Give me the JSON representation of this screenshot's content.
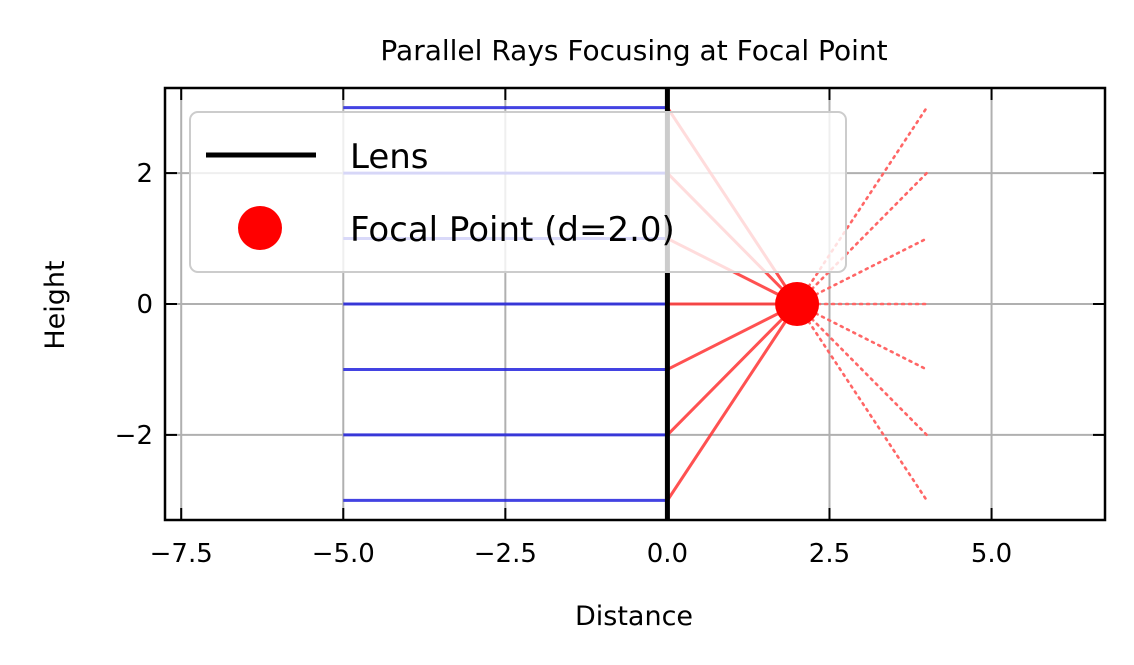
{
  "chart_data": {
    "type": "line",
    "title": "Parallel Rays Focusing at Focal Point",
    "xlabel": "Distance",
    "ylabel": "Height",
    "xlim": [
      -7.75,
      6.75
    ],
    "ylim": [
      -3.3,
      3.3
    ],
    "xticks": [
      -7.5,
      -5.0,
      -2.5,
      0.0,
      2.5,
      5.0
    ],
    "xtick_labels": [
      "−7.5",
      "−5.0",
      "−2.5",
      "0.0",
      "2.5",
      "5.0"
    ],
    "yticks": [
      -2,
      0,
      2
    ],
    "ytick_labels": [
      "−2",
      "0",
      "2"
    ],
    "grid": true,
    "legend_position": "upper-left",
    "lens": {
      "name": "Lens",
      "x": 0,
      "y_range": [
        -3.3,
        3.3
      ],
      "color": "#000000"
    },
    "focal_point": {
      "name": "Focal Point (d=2.0)",
      "x": 2.0,
      "y": 0,
      "color": "#ff0000"
    },
    "incoming_rays": {
      "color": "#2222dd",
      "x_start": -5,
      "x_end": 0,
      "heights": [
        -3,
        -2,
        -1,
        0,
        1,
        2,
        3
      ]
    },
    "refracted_rays": {
      "color": "#ff3333",
      "from_x": 0,
      "to_x": 2.0,
      "to_y": 0,
      "heights": [
        -3,
        -2,
        -1,
        0,
        1,
        2,
        3
      ]
    },
    "diverging_rays": {
      "color": "#ff6666",
      "style": "dotted",
      "from_x": 2.0,
      "to_x": 4.0,
      "end_heights": [
        3,
        2,
        1,
        0,
        -1,
        -2,
        -3
      ]
    }
  }
}
